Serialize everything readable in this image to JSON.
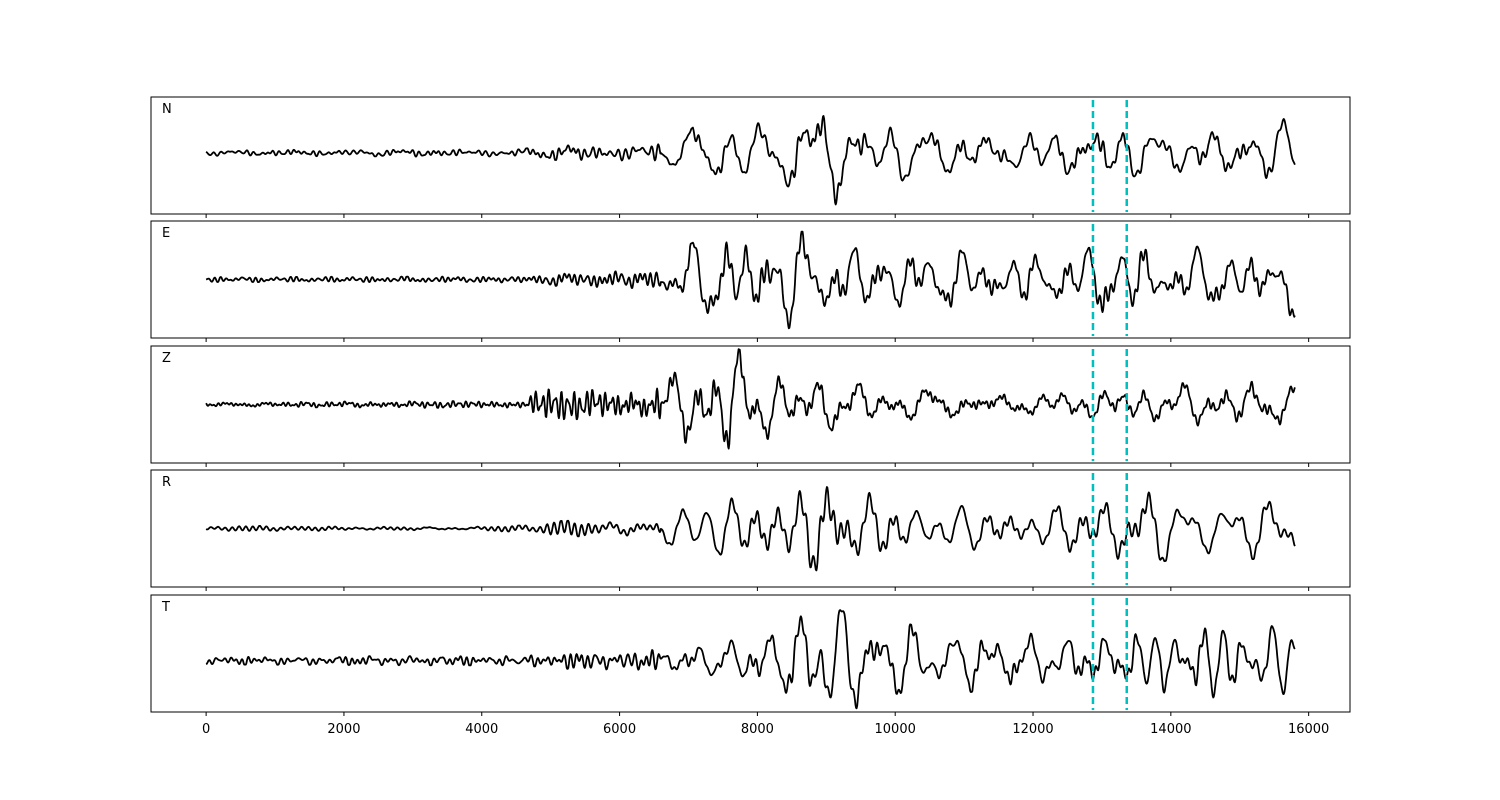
{
  "chart_data": {
    "type": "line",
    "title": "",
    "xlabel": "",
    "ylabel": "",
    "xlim": [
      -800,
      16600
    ],
    "xticks": [
      0,
      2000,
      4000,
      6000,
      8000,
      10000,
      12000,
      14000,
      16000
    ],
    "xtick_labels": [
      "0",
      "2000",
      "4000",
      "6000",
      "8000",
      "10000",
      "12000",
      "14000",
      "16000"
    ],
    "n_samples": 15800,
    "line_color": "#000000",
    "marker_color": "#00bfbf",
    "markers": [
      12870,
      13360
    ],
    "panels": [
      {
        "label": "N",
        "ylim": [
          -1.15,
          1.05
        ],
        "envelope": [
          [
            0,
            0.05
          ],
          [
            4600,
            0.07
          ],
          [
            5000,
            0.12
          ],
          [
            6000,
            0.15
          ],
          [
            6800,
            0.2
          ],
          [
            7200,
            0.55
          ],
          [
            8000,
            0.6
          ],
          [
            8800,
            1.0
          ],
          [
            9300,
            0.85
          ],
          [
            10500,
            0.5
          ],
          [
            12000,
            0.55
          ],
          [
            13000,
            0.7
          ],
          [
            14000,
            0.55
          ],
          [
            15800,
            0.6
          ]
        ],
        "seed": 11
      },
      {
        "label": "E",
        "ylim": [
          -1.05,
          1.05
        ],
        "envelope": [
          [
            0,
            0.04
          ],
          [
            4600,
            0.05
          ],
          [
            5000,
            0.1
          ],
          [
            6500,
            0.15
          ],
          [
            6800,
            0.45
          ],
          [
            7500,
            0.85
          ],
          [
            7900,
            1.0
          ],
          [
            8500,
            0.8
          ],
          [
            10000,
            0.6
          ],
          [
            11500,
            0.55
          ],
          [
            12500,
            0.55
          ],
          [
            13200,
            0.9
          ],
          [
            14000,
            0.55
          ],
          [
            15800,
            0.65
          ]
        ],
        "seed": 23
      },
      {
        "label": "Z",
        "ylim": [
          -1.05,
          1.05
        ],
        "envelope": [
          [
            0,
            0.04
          ],
          [
            4600,
            0.06
          ],
          [
            4800,
            0.25
          ],
          [
            6500,
            0.22
          ],
          [
            6700,
            0.55
          ],
          [
            7300,
            0.8
          ],
          [
            7600,
            1.0
          ],
          [
            8200,
            0.55
          ],
          [
            10000,
            0.45
          ],
          [
            12000,
            0.35
          ],
          [
            13000,
            0.35
          ],
          [
            14000,
            0.4
          ],
          [
            15800,
            0.4
          ]
        ],
        "seed": 37
      },
      {
        "label": "R",
        "ylim": [
          -1.05,
          1.05
        ],
        "envelope": [
          [
            0,
            0.04
          ],
          [
            4800,
            0.05
          ],
          [
            5000,
            0.12
          ],
          [
            6500,
            0.15
          ],
          [
            6700,
            0.45
          ],
          [
            7500,
            0.85
          ],
          [
            7800,
            0.95
          ],
          [
            8500,
            1.0
          ],
          [
            9500,
            0.75
          ],
          [
            11000,
            0.55
          ],
          [
            12500,
            0.5
          ],
          [
            13200,
            0.8
          ],
          [
            14000,
            0.5
          ],
          [
            15800,
            0.5
          ]
        ],
        "seed": 53
      },
      {
        "label": "T",
        "ylim": [
          -0.9,
          1.15
        ],
        "envelope": [
          [
            0,
            0.06
          ],
          [
            4600,
            0.08
          ],
          [
            5500,
            0.15
          ],
          [
            6500,
            0.18
          ],
          [
            7000,
            0.3
          ],
          [
            7500,
            0.4
          ],
          [
            8400,
            0.55
          ],
          [
            8800,
            1.0
          ],
          [
            9400,
            0.8
          ],
          [
            10500,
            0.5
          ],
          [
            12000,
            0.5
          ],
          [
            13000,
            0.55
          ],
          [
            14500,
            0.6
          ],
          [
            15800,
            0.55
          ]
        ],
        "seed": 71
      }
    ]
  }
}
